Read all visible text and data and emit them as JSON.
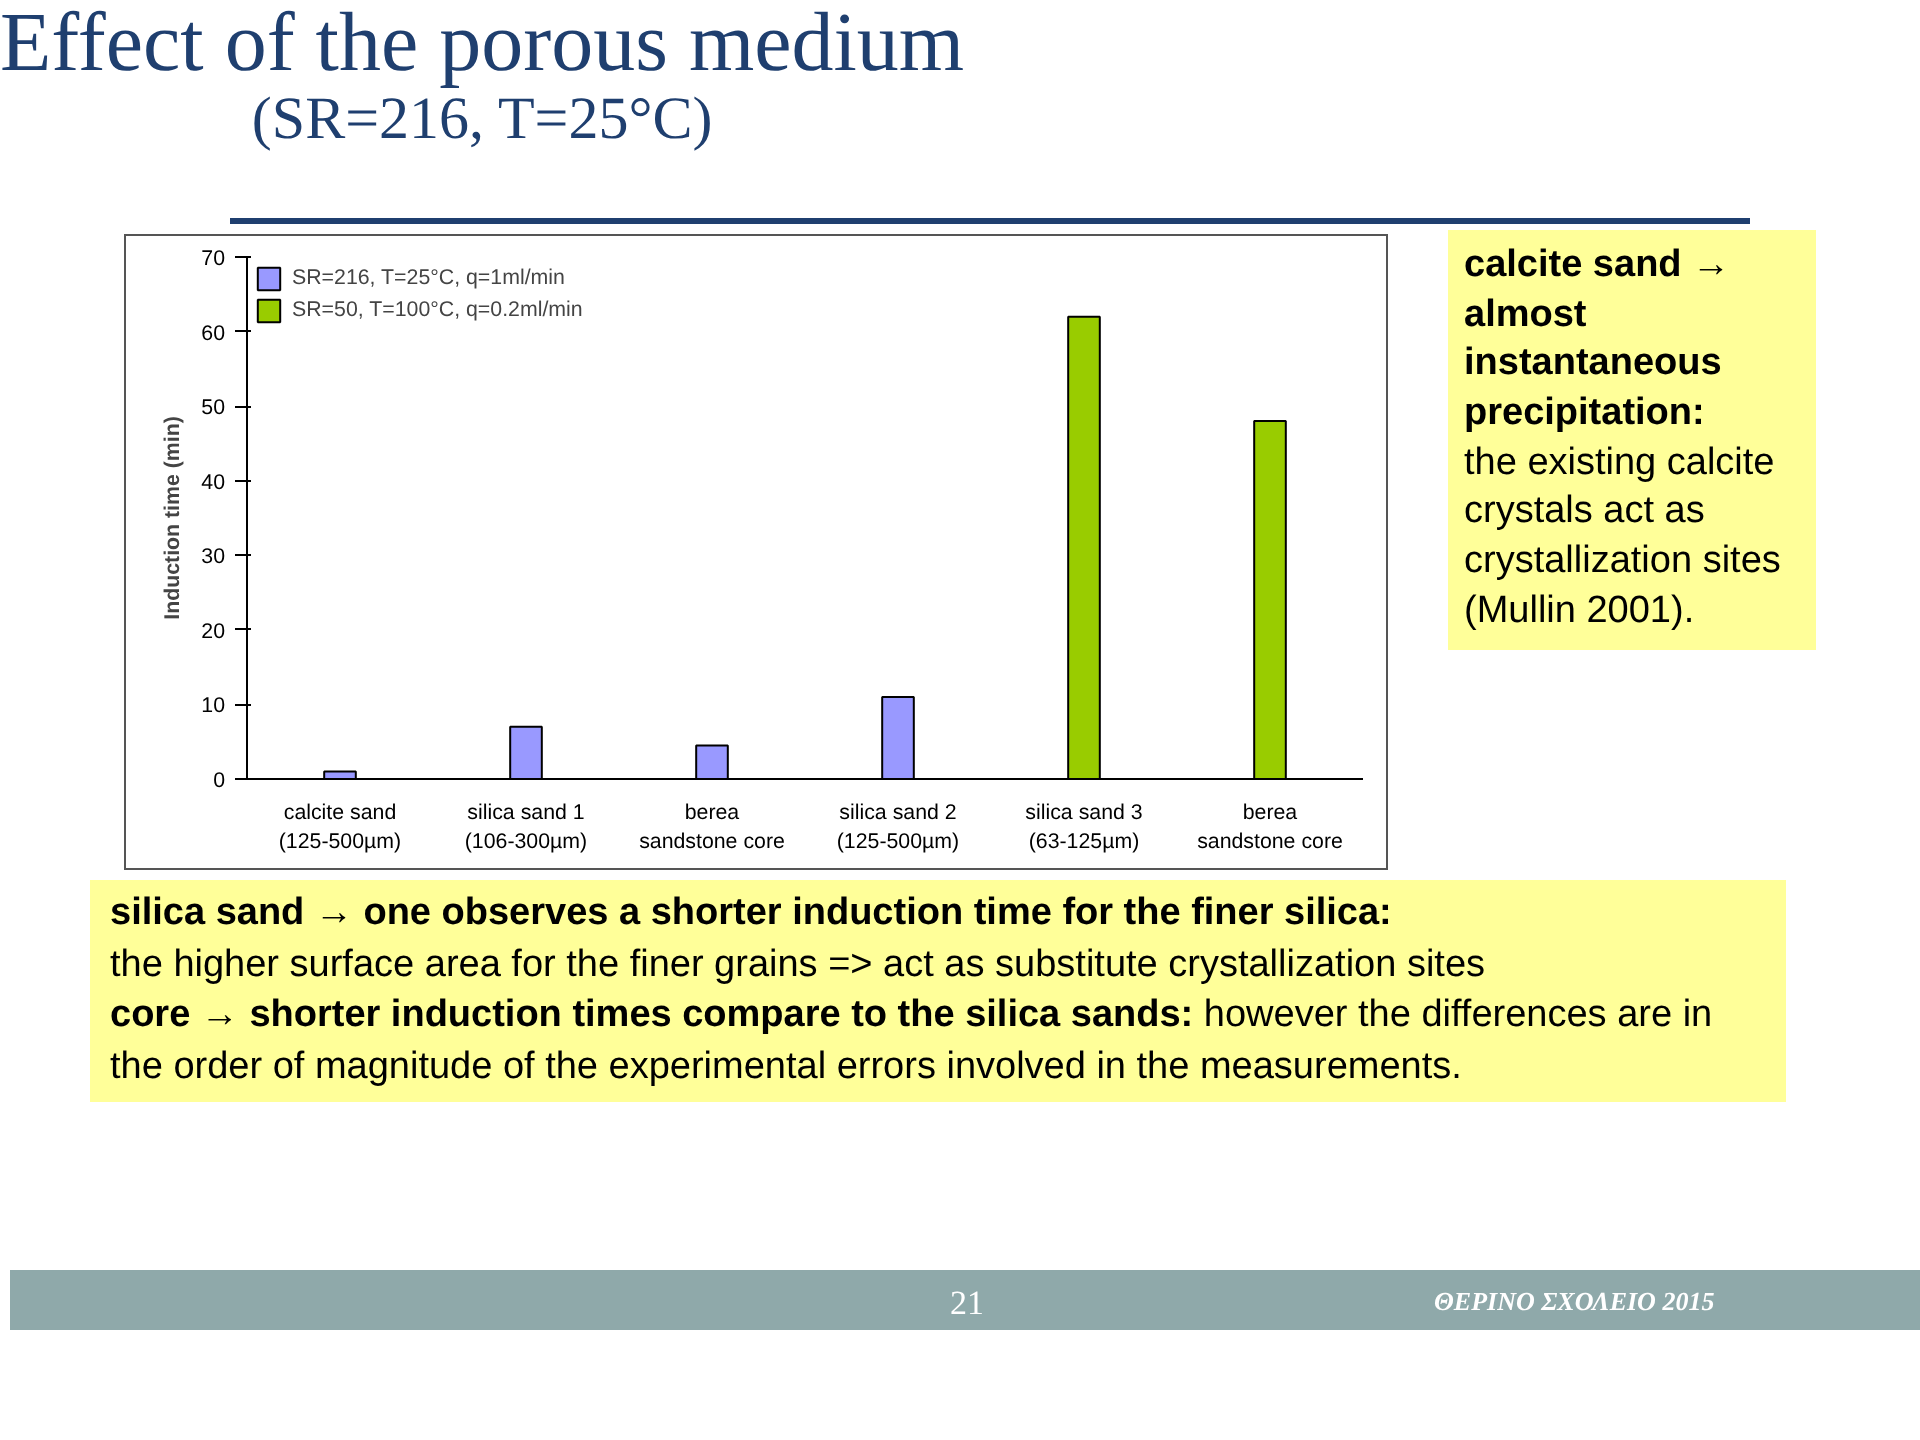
{
  "chart_data": {
    "type": "bar",
    "title": "Effect of the porous medium",
    "subtitle": "(SR=216, T=25°C)",
    "ylabel": "Induction time (min)",
    "categories": [
      "calcite sand\n(125-500µm)",
      "silica sand 1\n(106-300µm)",
      "berea\nsandstone core",
      "silica sand 2\n(125-500µm)",
      "silica sand 3\n(63-125µm)",
      "berea\nsandstone core"
    ],
    "series": [
      {
        "name": "SR=216, T=25°C, q=1ml/min",
        "color": "#9999ff",
        "values": [
          1,
          7,
          4.5,
          11,
          null,
          null
        ]
      },
      {
        "name": "SR=50, T=100°C, q=0.2ml/min",
        "color": "#99cc00",
        "values": [
          null,
          null,
          null,
          null,
          62,
          48
        ]
      }
    ],
    "ylim": [
      0,
      70
    ],
    "yticks": [
      0,
      10,
      20,
      30,
      40,
      50,
      60,
      70
    ],
    "grid": false,
    "legend": "top left",
    "annotations": [
      "calcite sand → almost instantaneous precipitation:",
      "the existing calcite crystals act as crystallization sites (Mullin 2001).",
      "silica sand → one observes a shorter induction time for the finer silica:",
      "the higher surface area for the finer grains => act as substitute crystallization sites",
      "core → shorter induction times compare to the silica sands:",
      "however the differences are in the order of magnitude of the experimental errors involved in the measurements.",
      "21",
      "ΘΕΡΙΝΟ ΣΧΟΛΕΙΟ 2015"
    ]
  }
}
